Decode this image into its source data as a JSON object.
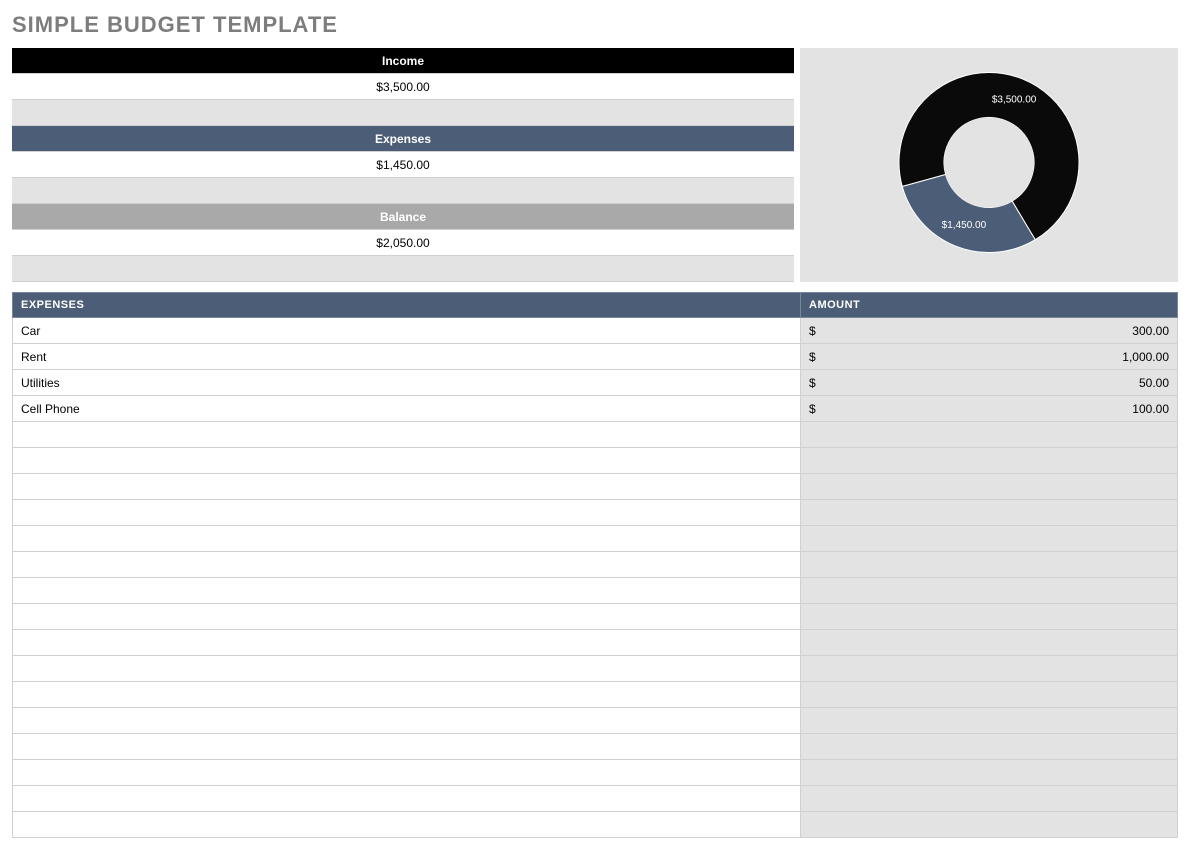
{
  "title": "SIMPLE BUDGET TEMPLATE",
  "summary": {
    "income": {
      "label": "Income",
      "value": "$3,500.00",
      "header_bg": "#000000"
    },
    "expenses": {
      "label": "Expenses",
      "value": "$1,450.00",
      "header_bg": "#4c5d77"
    },
    "balance": {
      "label": "Balance",
      "value": "$2,050.00",
      "header_bg": "#a9a9a9"
    }
  },
  "donut_chart": {
    "type": "donut",
    "background_color": "#e3e3e3",
    "outer_radius": 90,
    "inner_radius": 45,
    "slices": [
      {
        "label": "$3,500.00",
        "value": 3500,
        "color": "#0a0a0a"
      },
      {
        "label": "$1,450.00",
        "value": 1450,
        "color": "#4c5d77"
      }
    ]
  },
  "expense_table": {
    "headers": {
      "expenses": "EXPENSES",
      "amount": "AMOUNT"
    },
    "currency_symbol": "$",
    "rows": [
      {
        "name": "Car",
        "amount": "300.00"
      },
      {
        "name": "Rent",
        "amount": "1,000.00"
      },
      {
        "name": "Utilities",
        "amount": "50.00"
      },
      {
        "name": "Cell Phone",
        "amount": "100.00"
      }
    ],
    "empty_rows": 16,
    "colors": {
      "header_bg": "#4c5d77",
      "expense_bg": "#ffffff",
      "amount_bg": "#e3e3e3",
      "border": "#d0d0d0"
    }
  }
}
